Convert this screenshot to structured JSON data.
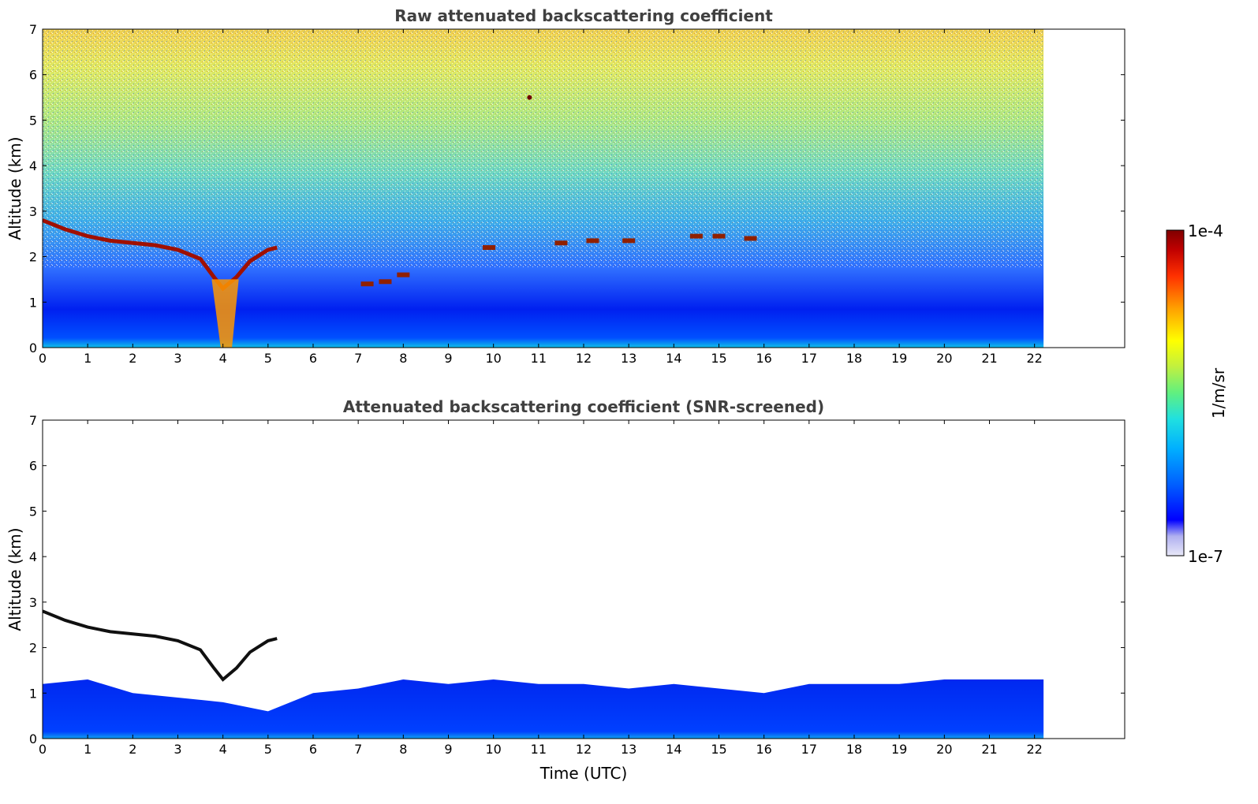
{
  "chart_data": [
    {
      "type": "heatmap",
      "title": "Raw attenuated backscattering coefficient",
      "xlabel": "",
      "ylabel": "Altitude (km)",
      "xlim": [
        0,
        24
      ],
      "ylim": [
        0,
        7
      ],
      "x_ticks": [
        "0",
        "1",
        "2",
        "3",
        "4",
        "5",
        "6",
        "7",
        "8",
        "9",
        "10",
        "11",
        "12",
        "13",
        "14",
        "15",
        "16",
        "17",
        "18",
        "19",
        "20",
        "21",
        "22"
      ],
      "y_ticks": [
        "0",
        "1",
        "2",
        "3",
        "4",
        "5",
        "6",
        "7"
      ],
      "data_time_range": [
        0,
        22.2
      ],
      "screened": false,
      "features": {
        "cloud_layer_km": [
          [
            0.0,
            2.8
          ],
          [
            0.5,
            2.6
          ],
          [
            1.0,
            2.45
          ],
          [
            1.5,
            2.35
          ],
          [
            2.0,
            2.3
          ],
          [
            2.5,
            2.25
          ],
          [
            3.0,
            2.15
          ],
          [
            3.5,
            1.95
          ],
          [
            3.8,
            1.55
          ],
          [
            4.0,
            1.3
          ],
          [
            4.3,
            1.55
          ],
          [
            4.6,
            1.9
          ],
          [
            5.0,
            2.15
          ],
          [
            5.2,
            2.2
          ]
        ],
        "mid_clouds_km": [
          [
            7.2,
            1.4
          ],
          [
            7.6,
            1.45
          ],
          [
            8.0,
            1.6
          ],
          [
            9.9,
            2.2
          ],
          [
            11.5,
            2.3
          ],
          [
            12.2,
            2.35
          ],
          [
            13.0,
            2.35
          ],
          [
            14.5,
            2.45
          ],
          [
            15.0,
            2.45
          ],
          [
            15.7,
            2.4
          ]
        ],
        "isolated_cloud": [
          10.8,
          5.5
        ]
      }
    },
    {
      "type": "heatmap",
      "title": "Attenuated backscattering coefficient (SNR-screened)",
      "xlabel": "Time (UTC)",
      "ylabel": "Altitude (km)",
      "xlim": [
        0,
        24
      ],
      "ylim": [
        0,
        7
      ],
      "x_ticks": [
        "0",
        "1",
        "2",
        "3",
        "4",
        "5",
        "6",
        "7",
        "8",
        "9",
        "10",
        "11",
        "12",
        "13",
        "14",
        "15",
        "16",
        "17",
        "18",
        "19",
        "20",
        "21",
        "22"
      ],
      "y_ticks": [
        "0",
        "1",
        "2",
        "3",
        "4",
        "5",
        "6",
        "7"
      ],
      "data_time_range": [
        0,
        22.2
      ],
      "screened": true,
      "boundary_layer_top_km": [
        [
          0,
          1.2
        ],
        [
          1,
          1.3
        ],
        [
          2,
          1.0
        ],
        [
          3,
          0.9
        ],
        [
          4,
          0.8
        ],
        [
          5,
          0.6
        ],
        [
          6,
          1.0
        ],
        [
          7,
          1.1
        ],
        [
          8,
          1.3
        ],
        [
          9,
          1.2
        ],
        [
          10,
          1.3
        ],
        [
          11,
          1.2
        ],
        [
          12,
          1.2
        ],
        [
          13,
          1.1
        ],
        [
          14,
          1.2
        ],
        [
          15,
          1.1
        ],
        [
          16,
          1.0
        ],
        [
          17,
          1.2
        ],
        [
          18,
          1.2
        ],
        [
          19,
          1.2
        ],
        [
          20,
          1.3
        ],
        [
          21,
          1.3
        ],
        [
          22,
          1.3
        ]
      ]
    }
  ],
  "colorbar": {
    "label": "1/m/sr",
    "max_label": "1e-4",
    "min_label": "1e-7",
    "scale": "log",
    "colormap": [
      "#e8e8f8",
      "#b0b0f0",
      "#0000ff",
      "#0060ff",
      "#00b0ff",
      "#20e0e0",
      "#60f080",
      "#c0f040",
      "#ffff00",
      "#ffa000",
      "#ff3000",
      "#c00000",
      "#800000"
    ]
  }
}
